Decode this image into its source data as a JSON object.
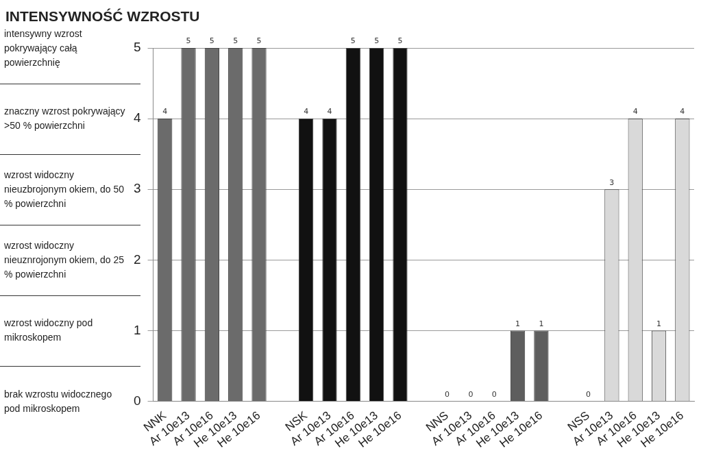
{
  "chart_data": {
    "type": "bar",
    "title": "INTENSYWNOŚĆ WZROSTU",
    "categories": [
      "NNK",
      "Ar 10e13",
      "Ar 10e16",
      "He 10e13",
      "He 10e16",
      null,
      "NSK",
      "Ar 10e13",
      "Ar 10e16",
      "He 10e13",
      "He 10e16",
      null,
      "NNS",
      "Ar 10e13",
      "Ar 10e16",
      "He 10e13",
      "He 10e16",
      null,
      "NSS",
      "Ar 10e13",
      "Ar 10e16",
      "He 10e13",
      "He 10e16"
    ],
    "values": [
      4,
      5,
      5,
      5,
      5,
      null,
      4,
      4,
      5,
      5,
      5,
      null,
      0,
      0,
      0,
      1,
      1,
      null,
      0,
      3,
      4,
      1,
      4
    ],
    "colors": [
      "#6b6b6b",
      "#6b6b6b",
      "#6b6b6b",
      "#6b6b6b",
      "#6b6b6b",
      "#ffffff",
      "#111111",
      "#111111",
      "#111111",
      "#111111",
      "#111111",
      "#ffffff",
      "#5e5e5e",
      "#5e5e5e",
      "#5e5e5e",
      "#5e5e5e",
      "#5e5e5e",
      "#ffffff",
      "#d9d9d9",
      "#d9d9d9",
      "#d9d9d9",
      "#d9d9d9",
      "#d9d9d9"
    ],
    "ylim": [
      0,
      5
    ],
    "yticks": [
      0,
      1,
      2,
      3,
      4,
      5
    ],
    "grid": "y",
    "data_labels": true,
    "annotations": [
      "intensywny wzrost pokrywający całą powierzchnię",
      "znaczny wzrost pokrywający >50 % powierzchni",
      "wzrost widoczny nieuzbrojonym okiem, do 50 % powierzchni",
      "wzrost widoczny nieuznrojonym okiem, do 25 % powierzchni",
      "wzrost widoczny pod mikroskopem",
      "brak wzrostu widocznego pod mikroskopem"
    ]
  }
}
